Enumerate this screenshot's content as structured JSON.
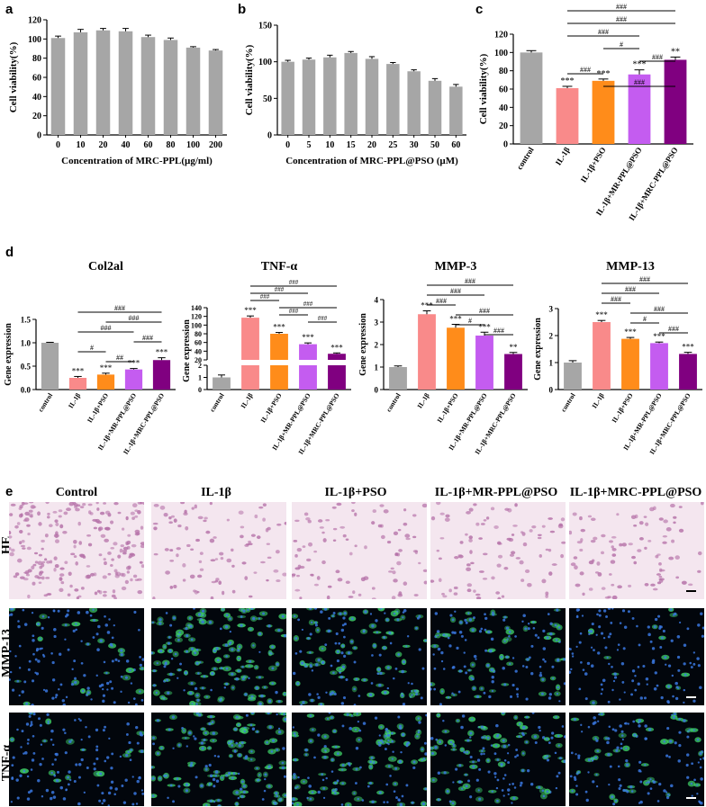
{
  "panel_letters": [
    "a",
    "b",
    "c",
    "d",
    "e"
  ],
  "chart_data": [
    {
      "id": "a",
      "type": "bar",
      "categories": [
        "0",
        "10",
        "20",
        "40",
        "60",
        "80",
        "100",
        "200"
      ],
      "values": [
        101,
        107,
        109,
        108,
        102,
        99,
        91,
        88
      ],
      "errors": [
        2,
        3,
        2,
        3,
        2,
        2,
        1,
        1
      ],
      "ylabel": "Cell viability(%)",
      "xlabel": "Concentration of MRC-PPL(µg/ml)",
      "ylim": [
        0,
        120
      ],
      "yticks": [
        0,
        20,
        40,
        60,
        80,
        100,
        120
      ],
      "colors": [
        "#a6a6a6"
      ]
    },
    {
      "id": "b",
      "type": "bar",
      "categories": [
        "0",
        "5",
        "10",
        "15",
        "20",
        "25",
        "30",
        "50",
        "60"
      ],
      "values": [
        100,
        103,
        106,
        112,
        104,
        97,
        87,
        74,
        66
      ],
      "errors": [
        2,
        2,
        3,
        2,
        3,
        2,
        2,
        3,
        3
      ],
      "ylabel": "Cell viability(%)",
      "xlabel": "Concentration of MRC-PPL@PSO (µM)",
      "ylim": [
        0,
        150
      ],
      "yticks": [
        0,
        50,
        100,
        150
      ],
      "colors": [
        "#a6a6a6"
      ]
    },
    {
      "id": "c",
      "type": "bar",
      "categories": [
        "control",
        "IL-1β",
        "IL-1β+PSO",
        "IL-1β+MR-PPL@PSO",
        "IL-1β+MRC-PPL@PSO"
      ],
      "values": [
        100,
        61,
        69,
        76,
        92
      ],
      "errors": [
        2,
        2,
        2,
        5,
        3
      ],
      "stars": [
        "",
        "***",
        "***",
        "***",
        "**"
      ],
      "ylabel": "Cell viability(%)",
      "ylim": [
        0,
        120
      ],
      "yticks": [
        0,
        20,
        40,
        60,
        80,
        100,
        120
      ],
      "colors": [
        "#a6a6a6",
        "#f98a8a",
        "#ff8c1a",
        "#c45cf0",
        "#800080"
      ],
      "brackets": [
        {
          "from": 1,
          "to": 4,
          "label": "###"
        },
        {
          "from": 1,
          "to": 4,
          "label": "###"
        },
        {
          "from": 1,
          "to": 3,
          "label": "###"
        },
        {
          "from": 2,
          "to": 3,
          "label": "#"
        },
        {
          "from": 3,
          "to": 4,
          "label": "###"
        },
        {
          "from": 1,
          "to": 2,
          "label": "###"
        },
        {
          "from": 2,
          "to": 4,
          "label": "###"
        }
      ]
    },
    {
      "id": "d1",
      "type": "bar",
      "title": "Col2al",
      "categories": [
        "control",
        "IL-1β",
        "IL-1β+PSO",
        "IL-1β+MR-PPL@PSO",
        "IL-1β+MRC-PPL@PSO"
      ],
      "values": [
        1.0,
        0.25,
        0.32,
        0.43,
        0.63
      ],
      "errors": [
        0.01,
        0.03,
        0.03,
        0.02,
        0.05
      ],
      "stars": [
        "",
        "***",
        "***",
        "***",
        "***"
      ],
      "ylabel": "Gene expression",
      "ylim": [
        0,
        1.5
      ],
      "yticks": [
        "0.0",
        "0.5",
        "1.0",
        "1.5"
      ],
      "colors": [
        "#a6a6a6",
        "#f98a8a",
        "#ff8c1a",
        "#c45cf0",
        "#800080"
      ],
      "brackets": [
        {
          "from": 1,
          "to": 4,
          "label": "###"
        },
        {
          "from": 2,
          "to": 4,
          "label": "###"
        },
        {
          "from": 1,
          "to": 3,
          "label": "###"
        },
        {
          "from": 3,
          "to": 4,
          "label": "###"
        },
        {
          "from": 1,
          "to": 2,
          "label": "#"
        },
        {
          "from": 2,
          "to": 3,
          "label": "##"
        }
      ]
    },
    {
      "id": "d2",
      "type": "bar",
      "title": "TNF-α",
      "categories": [
        "control",
        "IL-1β",
        "IL-1β+PSO",
        "IL-1β+MR-PPL@PSO",
        "IL-1β+MRC-PPL@PSO"
      ],
      "values": [
        1,
        117,
        80,
        56,
        34
      ],
      "errors": [
        0.2,
        4,
        3,
        3,
        2
      ],
      "stars": [
        "",
        "***",
        "***",
        "***",
        "***"
      ],
      "ylabel": "Gene expression",
      "broken_axis": true,
      "yticks_low": [
        "0",
        "1",
        "2"
      ],
      "yticks_high": [
        "20",
        "40",
        "60",
        "80",
        "100",
        "120",
        "140"
      ],
      "colors": [
        "#a6a6a6",
        "#f98a8a",
        "#ff8c1a",
        "#c45cf0",
        "#800080"
      ],
      "brackets": [
        {
          "from": 1,
          "to": 4,
          "label": "###"
        },
        {
          "from": 1,
          "to": 3,
          "label": "###"
        },
        {
          "from": 1,
          "to": 2,
          "label": "###"
        },
        {
          "from": 2,
          "to": 4,
          "label": "###"
        },
        {
          "from": 2,
          "to": 3,
          "label": "###"
        },
        {
          "from": 3,
          "to": 4,
          "label": "###"
        }
      ]
    },
    {
      "id": "d3",
      "type": "bar",
      "title": "MMP-3",
      "categories": [
        "control",
        "IL-1β",
        "IL-1β+PSO",
        "IL-1β+MR-PPL@PSO",
        "IL-1β+MRC-PPL@PSO"
      ],
      "values": [
        1.0,
        3.35,
        2.75,
        2.4,
        1.58
      ],
      "errors": [
        0.05,
        0.15,
        0.15,
        0.15,
        0.07
      ],
      "stars": [
        "",
        "***",
        "***",
        "***",
        "**"
      ],
      "ylabel": "Gene expression",
      "ylim": [
        0,
        4
      ],
      "yticks": [
        "0",
        "1",
        "2",
        "3",
        "4"
      ],
      "colors": [
        "#a6a6a6",
        "#f98a8a",
        "#ff8c1a",
        "#c45cf0",
        "#800080"
      ],
      "brackets": [
        {
          "from": 1,
          "to": 4,
          "label": "###"
        },
        {
          "from": 1,
          "to": 3,
          "label": "###"
        },
        {
          "from": 1,
          "to": 2,
          "label": "###"
        },
        {
          "from": 2,
          "to": 4,
          "label": "###"
        },
        {
          "from": 2,
          "to": 3,
          "label": "#"
        },
        {
          "from": 3,
          "to": 4,
          "label": "###"
        }
      ]
    },
    {
      "id": "d4",
      "type": "bar",
      "title": "MMP-13",
      "categories": [
        "control",
        "IL-1β",
        "IL-1β+PSO",
        "IL-1β+MR-PPL@PSO",
        "IL-1β+MRC-PPL@PSO"
      ],
      "values": [
        1.0,
        2.5,
        1.88,
        1.72,
        1.32
      ],
      "errors": [
        0.07,
        0.06,
        0.05,
        0.04,
        0.06
      ],
      "stars": [
        "",
        "***",
        "***",
        "***",
        "***"
      ],
      "ylabel": "Gene expression",
      "ylim": [
        0,
        3
      ],
      "yticks": [
        "0",
        "1",
        "2",
        "3"
      ],
      "colors": [
        "#a6a6a6",
        "#f98a8a",
        "#ff8c1a",
        "#c45cf0",
        "#800080"
      ],
      "brackets": [
        {
          "from": 1,
          "to": 4,
          "label": "###"
        },
        {
          "from": 1,
          "to": 3,
          "label": "###"
        },
        {
          "from": 1,
          "to": 2,
          "label": "###"
        },
        {
          "from": 2,
          "to": 4,
          "label": "###"
        },
        {
          "from": 2,
          "to": 3,
          "label": "#"
        },
        {
          "from": 3,
          "to": 4,
          "label": "###"
        }
      ]
    }
  ],
  "panel_e": {
    "columns": [
      "Control",
      "IL-1β",
      "IL-1β+PSO",
      "IL-1β+MR-PPL@PSO",
      "IL-1β+MRC-PPL@PSO"
    ],
    "rows": [
      "HE",
      "MMP-13",
      "TNF-α"
    ],
    "green_intensity": [
      [
        0.15,
        0.85,
        0.45,
        0.4,
        0.12
      ],
      [
        0.12,
        0.75,
        0.5,
        0.45,
        0.25
      ]
    ],
    "colors": {
      "he_bg": "#f4e6ef",
      "he_cell": "#b571a8",
      "fl_bg": "#02060c",
      "nucleus": "#3a78e0",
      "green": "#3fd36a"
    }
  }
}
